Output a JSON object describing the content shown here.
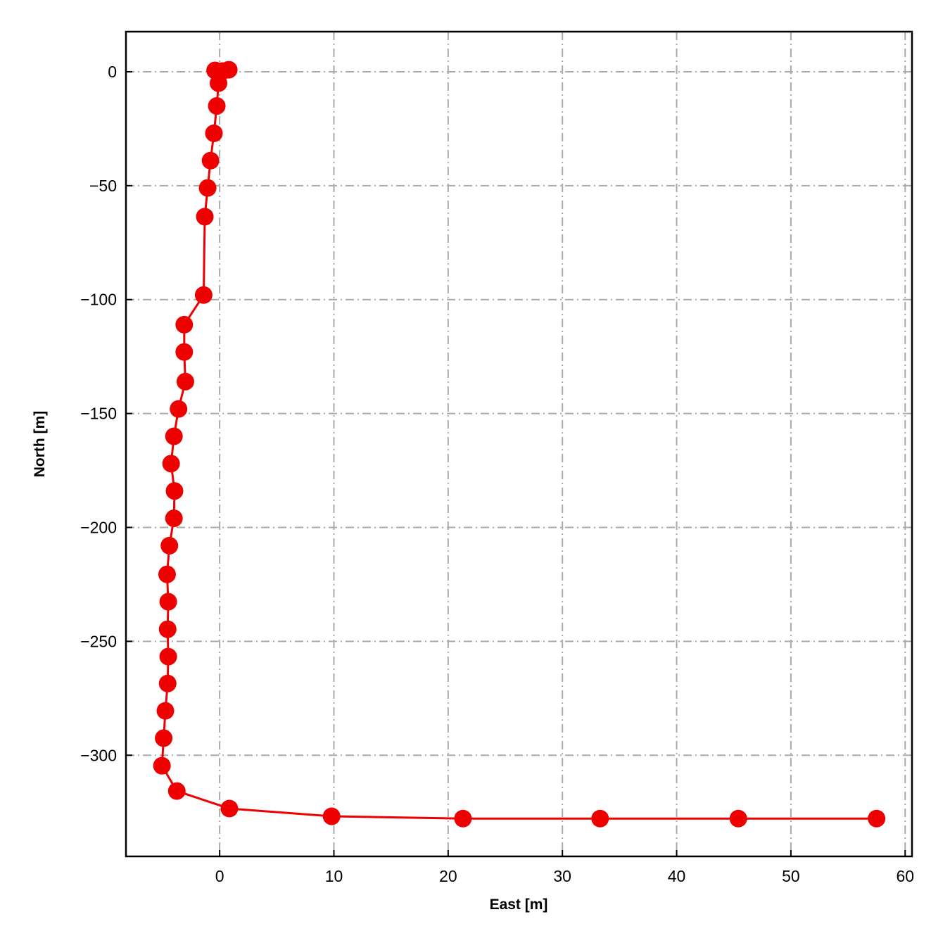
{
  "chart_data": {
    "type": "line",
    "xlabel": "East [m]",
    "ylabel": "North [m]",
    "color": "#ee0000",
    "grid": true,
    "xlim": [
      -8.2,
      60.6
    ],
    "ylim": [
      -344.4,
      17.6
    ],
    "xticks": [
      0,
      10,
      20,
      30,
      40,
      50,
      60
    ],
    "yticks": [
      0,
      {
        "value": -50,
        "label": "−50"
      },
      {
        "value": -100,
        "label": "−100"
      },
      {
        "value": -150,
        "label": "−150"
      },
      {
        "value": -200,
        "label": "−200"
      },
      {
        "value": -250,
        "label": "−250"
      },
      {
        "value": -300,
        "label": "−300"
      }
    ],
    "x": [
      0.8,
      0.25,
      -0.4,
      -0.1,
      -0.25,
      -0.5,
      -0.8,
      -1.05,
      -1.3,
      -1.4,
      -3.1,
      -3.1,
      -3.0,
      -3.6,
      -4.0,
      -4.25,
      -3.95,
      -4.0,
      -4.4,
      -4.6,
      -4.5,
      -4.55,
      -4.5,
      -4.55,
      -4.75,
      -4.9,
      -5.05,
      -3.75,
      0.85,
      9.8,
      21.3,
      33.3,
      45.4,
      57.5
    ],
    "values": [
      0.9,
      0.3,
      0.6,
      -5,
      -15,
      -27,
      -39,
      -51,
      -63.6,
      -98,
      -111,
      -123,
      -136,
      -148,
      -160,
      -172,
      -184,
      -196,
      -208,
      -220.6,
      -232.6,
      -244.7,
      -256.7,
      -268.5,
      -280.5,
      -292.5,
      -304.6,
      -315.7,
      -323.4,
      -326.8,
      -327.8,
      -327.8,
      -327.8,
      -327.8
    ]
  }
}
